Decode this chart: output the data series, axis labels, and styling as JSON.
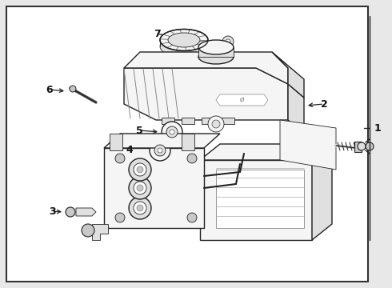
{
  "bg_color": "#e8e8e8",
  "border_color": "#333333",
  "panel_color": "#ffffff",
  "line_color": "#222222",
  "label_color": "#111111",
  "fill_light": "#f5f5f5",
  "fill_mid": "#e0e0e0",
  "fill_dark": "#c8c8c8",
  "lw_main": 1.0,
  "lw_thin": 0.6,
  "lw_thick": 1.4
}
